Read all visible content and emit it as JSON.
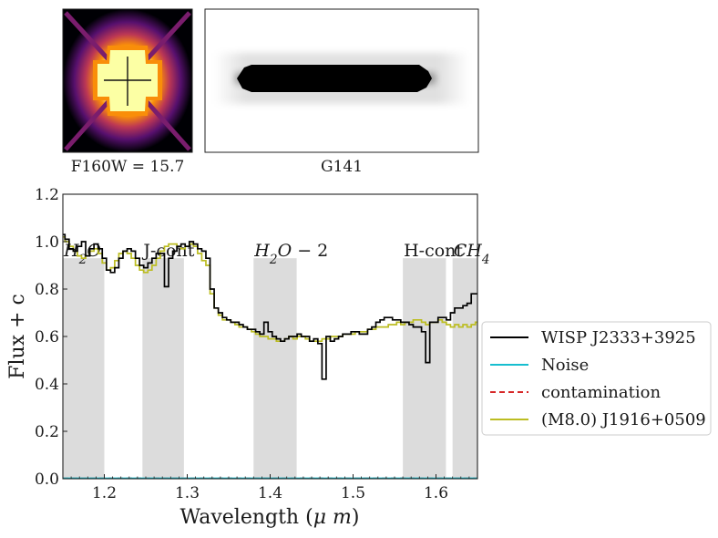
{
  "thumbnails": {
    "direct_image_caption": "F160W = 15.7",
    "grism_image_caption": "G141"
  },
  "chart_data": {
    "type": "line",
    "xlabel": "Wavelength ($\\mu m$)",
    "ylabel": "Flux + c",
    "xlim": [
      1.15,
      1.65
    ],
    "ylim": [
      0.0,
      1.2
    ],
    "xticks": [
      1.2,
      1.3,
      1.4,
      1.5,
      1.6
    ],
    "yticks": [
      0.0,
      0.2,
      0.4,
      0.6,
      0.8,
      1.0,
      1.2
    ],
    "grid": false,
    "legend_position": "right",
    "bands": [
      {
        "label": "$H_2O$",
        "xmin": 1.15,
        "xmax": 1.2,
        "ymax": 0.93
      },
      {
        "label": "J-cont",
        "xmin": 1.246,
        "xmax": 1.296,
        "ymax": 0.93
      },
      {
        "label": "$H_2O-2$",
        "xmin": 1.38,
        "xmax": 1.432,
        "ymax": 0.93
      },
      {
        "label": "H-cont",
        "xmin": 1.56,
        "xmax": 1.612,
        "ymax": 0.93
      },
      {
        "label": "$CH_4$",
        "xmin": 1.62,
        "xmax": 1.65,
        "ymax": 0.93
      }
    ],
    "series": [
      {
        "name": "WISP  J2333+3925",
        "color": "#000000",
        "style": "steps",
        "x": [
          1.15,
          1.155,
          1.16,
          1.165,
          1.17,
          1.175,
          1.18,
          1.185,
          1.19,
          1.195,
          1.2,
          1.205,
          1.21,
          1.215,
          1.22,
          1.225,
          1.23,
          1.235,
          1.24,
          1.245,
          1.25,
          1.255,
          1.26,
          1.265,
          1.27,
          1.275,
          1.28,
          1.285,
          1.29,
          1.295,
          1.3,
          1.305,
          1.31,
          1.315,
          1.32,
          1.325,
          1.33,
          1.335,
          1.34,
          1.345,
          1.35,
          1.355,
          1.36,
          1.365,
          1.37,
          1.375,
          1.38,
          1.385,
          1.39,
          1.395,
          1.4,
          1.405,
          1.41,
          1.415,
          1.42,
          1.425,
          1.43,
          1.435,
          1.44,
          1.445,
          1.45,
          1.455,
          1.46,
          1.465,
          1.47,
          1.475,
          1.48,
          1.485,
          1.49,
          1.495,
          1.5,
          1.505,
          1.51,
          1.515,
          1.52,
          1.525,
          1.53,
          1.535,
          1.54,
          1.545,
          1.55,
          1.555,
          1.56,
          1.565,
          1.57,
          1.575,
          1.58,
          1.585,
          1.59,
          1.595,
          1.6,
          1.605,
          1.61,
          1.615,
          1.62,
          1.625,
          1.63,
          1.635,
          1.64,
          1.645,
          1.65
        ],
        "y": [
          1.03,
          1.01,
          0.97,
          0.96,
          0.98,
          1.0,
          0.94,
          0.97,
          0.99,
          0.97,
          0.93,
          0.88,
          0.87,
          0.89,
          0.93,
          0.96,
          0.97,
          0.96,
          0.93,
          0.9,
          0.89,
          0.91,
          0.93,
          0.95,
          0.95,
          0.81,
          0.93,
          0.96,
          0.98,
          0.99,
          0.98,
          1.0,
          0.99,
          0.97,
          0.96,
          0.93,
          0.8,
          0.72,
          0.7,
          0.68,
          0.67,
          0.66,
          0.66,
          0.65,
          0.64,
          0.63,
          0.63,
          0.62,
          0.61,
          0.66,
          0.62,
          0.6,
          0.59,
          0.58,
          0.59,
          0.6,
          0.6,
          0.61,
          0.6,
          0.6,
          0.58,
          0.59,
          0.57,
          0.42,
          0.6,
          0.58,
          0.59,
          0.6,
          0.61,
          0.61,
          0.62,
          0.62,
          0.61,
          0.61,
          0.63,
          0.64,
          0.66,
          0.67,
          0.68,
          0.68,
          0.67,
          0.67,
          0.66,
          0.66,
          0.65,
          0.64,
          0.64,
          0.62,
          0.49,
          0.66,
          0.66,
          0.68,
          0.68,
          0.67,
          0.7,
          0.72,
          0.72,
          0.73,
          0.74,
          0.78,
          0.78
        ]
      },
      {
        "name": "Noise",
        "color": "#17becf",
        "style": "line",
        "x": [
          1.15,
          1.65
        ],
        "y": [
          0.0,
          0.0
        ]
      },
      {
        "name": "contamination",
        "color": "#d62728",
        "style": "dashed",
        "x": [
          1.15,
          1.65
        ],
        "y": [
          0.0,
          0.0
        ]
      },
      {
        "name": "(M8.0) J1916+0509",
        "color": "#bcbd22",
        "style": "steps",
        "x": [
          1.15,
          1.155,
          1.16,
          1.165,
          1.17,
          1.175,
          1.18,
          1.185,
          1.19,
          1.195,
          1.2,
          1.205,
          1.21,
          1.215,
          1.22,
          1.225,
          1.23,
          1.235,
          1.24,
          1.245,
          1.25,
          1.255,
          1.26,
          1.265,
          1.27,
          1.275,
          1.28,
          1.285,
          1.29,
          1.295,
          1.3,
          1.305,
          1.31,
          1.315,
          1.32,
          1.325,
          1.33,
          1.335,
          1.34,
          1.345,
          1.35,
          1.355,
          1.36,
          1.365,
          1.37,
          1.375,
          1.38,
          1.385,
          1.39,
          1.395,
          1.4,
          1.405,
          1.41,
          1.415,
          1.42,
          1.425,
          1.43,
          1.435,
          1.44,
          1.445,
          1.45,
          1.455,
          1.46,
          1.465,
          1.47,
          1.475,
          1.48,
          1.485,
          1.49,
          1.495,
          1.5,
          1.505,
          1.51,
          1.515,
          1.52,
          1.525,
          1.53,
          1.535,
          1.54,
          1.545,
          1.55,
          1.555,
          1.56,
          1.565,
          1.57,
          1.575,
          1.58,
          1.585,
          1.59,
          1.595,
          1.6,
          1.605,
          1.61,
          1.615,
          1.62,
          1.625,
          1.63,
          1.635,
          1.64,
          1.645,
          1.65
        ],
        "y": [
          1.02,
          1.0,
          0.98,
          0.96,
          0.94,
          0.93,
          0.94,
          0.96,
          0.97,
          0.95,
          0.91,
          0.88,
          0.89,
          0.92,
          0.95,
          0.96,
          0.95,
          0.93,
          0.9,
          0.88,
          0.87,
          0.88,
          0.9,
          0.93,
          0.96,
          0.98,
          0.99,
          0.99,
          0.98,
          0.97,
          0.98,
          0.99,
          0.98,
          0.95,
          0.92,
          0.9,
          0.78,
          0.72,
          0.69,
          0.67,
          0.67,
          0.66,
          0.65,
          0.64,
          0.64,
          0.63,
          0.62,
          0.61,
          0.6,
          0.6,
          0.59,
          0.59,
          0.58,
          0.58,
          0.59,
          0.6,
          0.59,
          0.6,
          0.6,
          0.59,
          0.58,
          0.58,
          0.58,
          0.59,
          0.59,
          0.6,
          0.6,
          0.6,
          0.61,
          0.61,
          0.61,
          0.62,
          0.62,
          0.62,
          0.63,
          0.63,
          0.64,
          0.64,
          0.64,
          0.65,
          0.65,
          0.66,
          0.65,
          0.66,
          0.66,
          0.67,
          0.67,
          0.66,
          0.65,
          0.66,
          0.66,
          0.67,
          0.66,
          0.65,
          0.64,
          0.65,
          0.64,
          0.65,
          0.64,
          0.65,
          0.66
        ]
      }
    ]
  }
}
